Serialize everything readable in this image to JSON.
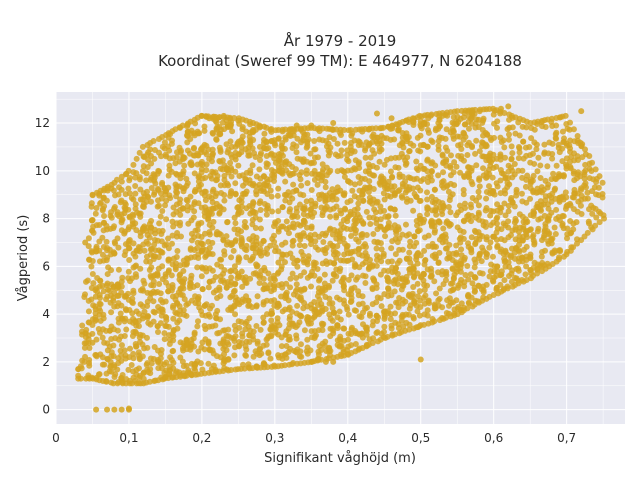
{
  "chart_data": {
    "type": "scatter",
    "title_lines": [
      "År 1979 - 2019",
      "Koordinat (Sweref 99 TM): E 464977, N 6204188"
    ],
    "xlabel": "Signifikant våghöjd (m)",
    "ylabel": "Vågperiod (s)",
    "xlim": [
      0,
      0.78
    ],
    "ylim": [
      -0.6,
      13.3
    ],
    "xticks": [
      0,
      0.1,
      0.2,
      0.3,
      0.4,
      0.5,
      0.6,
      0.7
    ],
    "xtick_labels": [
      "0",
      "0,1",
      "0,2",
      "0,3",
      "0,4",
      "0,5",
      "0,6",
      "0,7"
    ],
    "yticks": [
      0,
      2,
      4,
      6,
      8,
      10,
      12
    ],
    "ytick_labels": [
      "0",
      "2",
      "4",
      "6",
      "8",
      "10",
      "12"
    ],
    "grid": true,
    "legend": "none",
    "background_color": "#e8e9f2",
    "grid_color": "#ffffff",
    "marker_color": "#d4a421",
    "series": [
      {
        "envelope_x": [
          0.03,
          0.05,
          0.08,
          0.1,
          0.12,
          0.15,
          0.2,
          0.25,
          0.3,
          0.35,
          0.4,
          0.45,
          0.5,
          0.55,
          0.6,
          0.65,
          0.7,
          0.75
        ],
        "envelope_low": [
          1.3,
          1.3,
          1.1,
          1.1,
          1.1,
          1.3,
          1.5,
          1.7,
          1.8,
          2.0,
          2.3,
          3.0,
          3.5,
          4.0,
          4.8,
          5.5,
          6.5,
          8.0
        ],
        "envelope_high": [
          1.7,
          9.0,
          9.5,
          10.0,
          11.0,
          11.5,
          12.3,
          12.2,
          11.7,
          11.8,
          11.7,
          11.8,
          12.3,
          12.5,
          12.6,
          12.0,
          12.3,
          9.5
        ],
        "x": [
          0.055,
          0.07,
          0.08,
          0.09,
          0.1,
          0.1,
          0.17,
          0.2,
          0.35,
          0.36,
          0.37,
          0.38,
          0.5,
          0.21,
          0.23,
          0.25,
          0.46,
          0.57,
          0.61,
          0.62,
          0.72,
          0.53,
          0.35,
          0.05,
          0.06,
          0.04,
          0.09,
          0.12,
          0.38,
          0.44,
          0.48,
          0.33
        ],
        "y": [
          0,
          0,
          0,
          0,
          0,
          0.05,
          11.8,
          12.3,
          2.0,
          2.1,
          2.0,
          2.0,
          2.1,
          12.2,
          12.3,
          12.1,
          12.2,
          12.5,
          12.6,
          12.7,
          12.5,
          12.3,
          11.9,
          2.8,
          4.8,
          7.0,
          9.2,
          10.6,
          12.0,
          12.4,
          12.1,
          11.9
        ]
      }
    ]
  }
}
